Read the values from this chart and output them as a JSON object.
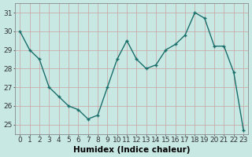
{
  "x": [
    0,
    1,
    2,
    3,
    4,
    5,
    6,
    7,
    8,
    9,
    10,
    11,
    12,
    13,
    14,
    15,
    16,
    17,
    18,
    19,
    20,
    21,
    22,
    23
  ],
  "y": [
    30.0,
    29.0,
    28.5,
    27.0,
    26.5,
    26.0,
    25.8,
    25.3,
    25.5,
    27.0,
    28.5,
    29.5,
    28.5,
    28.0,
    28.2,
    29.0,
    29.3,
    29.8,
    31.0,
    30.7,
    29.2,
    29.2,
    27.8,
    24.7
  ],
  "line_color": "#1a6e6a",
  "marker": "+",
  "markersize": 3.5,
  "linewidth": 1.0,
  "bg_color": "#c8e8e4",
  "grid_color": "#c8a0a0",
  "xlabel": "Humidex (Indice chaleur)",
  "xlim": [
    -0.5,
    23.5
  ],
  "ylim": [
    24.5,
    31.5
  ],
  "yticks": [
    25,
    26,
    27,
    28,
    29,
    30,
    31
  ],
  "xticks": [
    0,
    1,
    2,
    3,
    4,
    5,
    6,
    7,
    8,
    9,
    10,
    11,
    12,
    13,
    14,
    15,
    16,
    17,
    18,
    19,
    20,
    21,
    22,
    23
  ],
  "xlabel_fontsize": 7.5,
  "tick_fontsize": 6.5
}
